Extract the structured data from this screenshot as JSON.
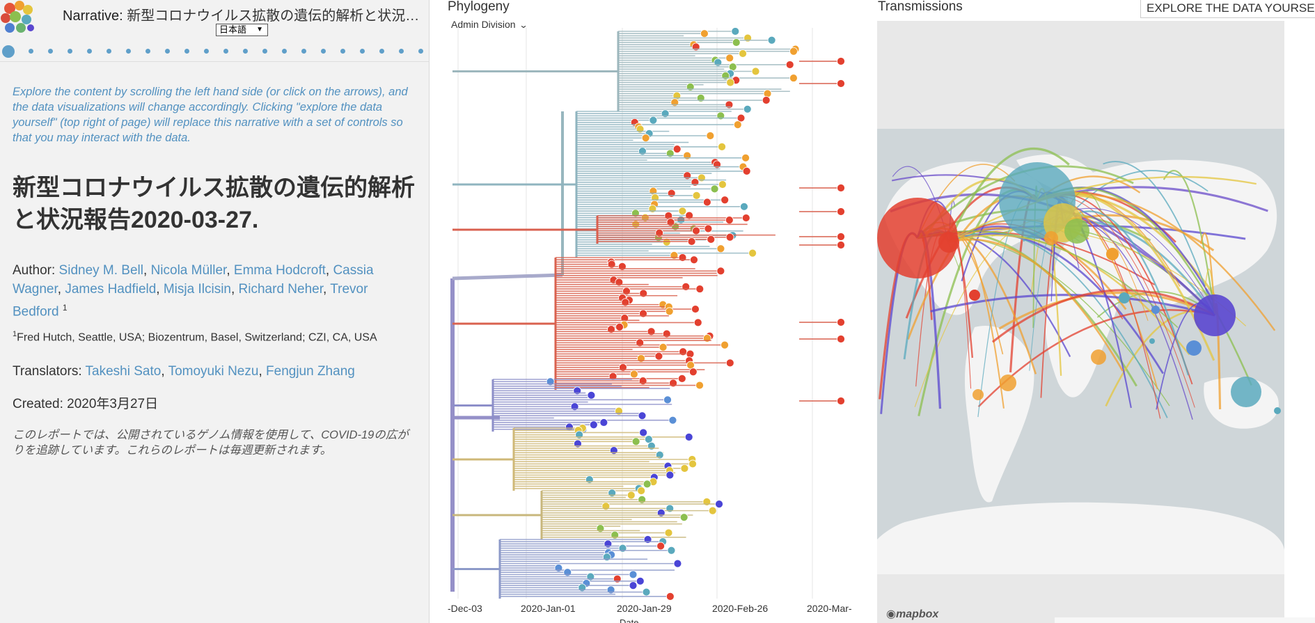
{
  "narrative": {
    "title_prefix": "Narrative:",
    "title_text": "新型コロナウイルス拡散の遺伝的解析と状況報告2020-03-27.",
    "language": "日本語",
    "dot_count": 22,
    "intro": "Explore the content by scrolling the left hand side (or click on the arrows), and the data visualizations will change accordingly. Clicking \"explore the data yourself\" (top right of page) will replace this narrative with a set of controls so that you may interact with the data.",
    "main_title": "新型コロナウイルス拡散の遺伝的解析と状況報告2020-03-27.",
    "author_label": "Author:",
    "authors": [
      "Sidney M. Bell",
      "Nicola Müller",
      "Emma Hodcroft",
      "Cassia Wagner",
      "James Hadfield",
      "Misja Ilcisin",
      "Richard Neher",
      "Trevor Bedford"
    ],
    "author_sup": "1",
    "affiliation_sup": "1",
    "affiliation": "Fred Hutch, Seattle, USA; Biozentrum, Basel, Switzerland; CZI, CA, USA",
    "translators_label": "Translators:",
    "translators": [
      "Takeshi Sato",
      "Tomoyuki Nezu",
      "Fengjun Zhang"
    ],
    "created_label": "Created:",
    "created_value": "2020年3月27日",
    "summary": "このレポートでは、公開されているゲノム情報を使用して、COVID-19の広がりを追跡しています。これらのレポートは毎週更新されます。"
  },
  "phylogeny": {
    "title": "Phylogeny",
    "color_by": "Admin Division",
    "x_ticks": [
      "-Dec-03",
      "2020-Jan-01",
      "2020-Jan-29",
      "2020-Feb-26",
      "2020-Mar-"
    ],
    "x_label": "Date"
  },
  "map": {
    "title": "Transmissions",
    "explore_button": "EXPLORE THE DATA YOURSELF",
    "attribution": "mapbox"
  },
  "colors": {
    "link": "#5291c0",
    "red": "#e3402f",
    "purple": "#5a47cf",
    "teal": "#5aa9bd",
    "yellow": "#e4c53e",
    "orange": "#f0a030"
  }
}
